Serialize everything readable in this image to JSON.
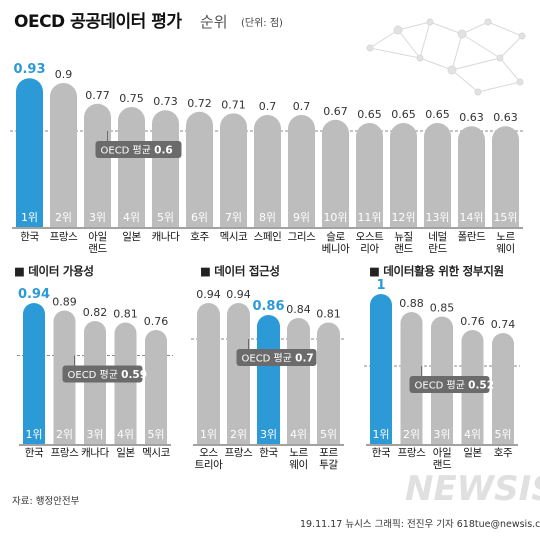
{
  "header": {
    "title": "OECD 공공데이터 평가",
    "title_suffix": "순위",
    "unit": "(단위: 점)"
  },
  "colors": {
    "highlight": "#2d9ad8",
    "bar": "#bdbdbd",
    "avg_badge": "#6b6b6b",
    "avg_line": "#8a8a8a"
  },
  "chart_data": [
    {
      "type": "bar",
      "title": "",
      "categories": [
        "한국",
        "프랑스",
        "아일\n랜드",
        "일본",
        "캐나다",
        "호주",
        "멕시코",
        "스페인",
        "그리스",
        "슬로\n베니아",
        "오스트\n리아",
        "뉴질\n랜드",
        "네덜\n란드",
        "폴란드",
        "노르\n웨이"
      ],
      "values": [
        0.93,
        0.9,
        0.77,
        0.75,
        0.73,
        0.72,
        0.71,
        0.7,
        0.7,
        0.67,
        0.65,
        0.65,
        0.65,
        0.63,
        0.63
      ],
      "value_labels": [
        "0.93",
        "0.9",
        "0.77",
        "0.75",
        "0.73",
        "0.72",
        "0.71",
        "0.7",
        "0.7",
        "0.67",
        "0.65",
        "0.65",
        "0.65",
        "0.63",
        "0.63"
      ],
      "ranks": [
        "1위",
        "2위",
        "3위",
        "4위",
        "5위",
        "6위",
        "7위",
        "8위",
        "9위",
        "10위",
        "11위",
        "12위",
        "13위",
        "14위",
        "15위"
      ],
      "highlight_index": 0,
      "average": {
        "label": "OECD 평균",
        "value": 0.6,
        "value_label": "0.6"
      },
      "ylim": [
        0,
        1
      ]
    },
    {
      "type": "bar",
      "title": "■ 데이터 가용성",
      "categories": [
        "한국",
        "프랑스",
        "캐나다",
        "일본",
        "멕시코"
      ],
      "values": [
        0.94,
        0.89,
        0.82,
        0.81,
        0.76
      ],
      "value_labels": [
        "0.94",
        "0.89",
        "0.82",
        "0.81",
        "0.76"
      ],
      "ranks": [
        "1위",
        "2위",
        "3위",
        "4위",
        "5위"
      ],
      "highlight_index": 0,
      "average": {
        "label": "OECD 평균",
        "value": 0.59,
        "value_label": "0.59"
      },
      "ylim": [
        0,
        1
      ]
    },
    {
      "type": "bar",
      "title": "■ 데이터 접근성",
      "categories": [
        "오스\n트리아",
        "프랑스",
        "한국",
        "노르\n웨이",
        "포르\n투갈"
      ],
      "values": [
        0.94,
        0.94,
        0.86,
        0.84,
        0.81
      ],
      "value_labels": [
        "0.94",
        "0.94",
        "0.86",
        "0.84",
        "0.81"
      ],
      "ranks": [
        "1위",
        "2위",
        "3위",
        "4위",
        "5위"
      ],
      "highlight_index": 2,
      "average": {
        "label": "OECD 평균",
        "value": 0.7,
        "value_label": "0.7"
      },
      "ylim": [
        0,
        1
      ]
    },
    {
      "type": "bar",
      "title": "■ 데이터활용 위한 정부지원",
      "categories": [
        "한국",
        "프랑스",
        "아일\n랜드",
        "일본",
        "호주"
      ],
      "values": [
        1,
        0.88,
        0.85,
        0.76,
        0.74
      ],
      "value_labels": [
        "1",
        "0.88",
        "0.85",
        "0.76",
        "0.74"
      ],
      "ranks": [
        "1위",
        "2위",
        "3위",
        "4위",
        "5위"
      ],
      "highlight_index": 0,
      "average": {
        "label": "OECD 평균",
        "value": 0.52,
        "value_label": "0.52"
      },
      "ylim": [
        0,
        1
      ]
    }
  ],
  "footer": {
    "source": "자료: 행정안전부",
    "credit": "19.11.17 뉴시스 그래픽: 전진우 기자 618tue@newsis.com",
    "watermark": "NEWSIS"
  }
}
